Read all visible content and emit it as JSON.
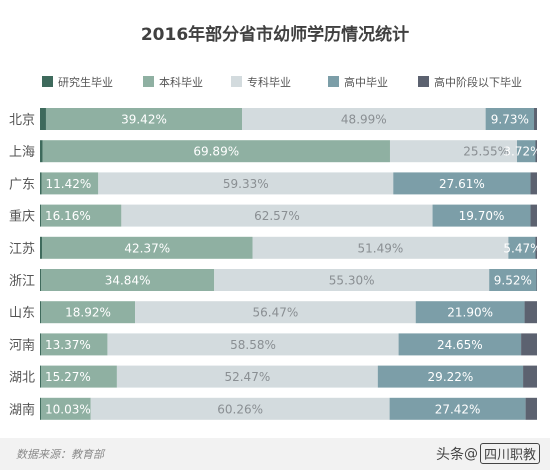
{
  "chart_data": {
    "type": "bar",
    "orientation": "horizontal",
    "stacked": true,
    "normalized": true,
    "title": "2016年部分省市幼师学历情况统计",
    "legend_position": "top",
    "grid": false,
    "xlim": [
      0,
      100
    ],
    "categories": [
      "北京",
      "上海",
      "广东",
      "重庆",
      "江苏",
      "浙江",
      "山东",
      "河南",
      "湖北",
      "湖南"
    ],
    "series": [
      {
        "name": "研究生毕业",
        "color": "#3e6a5c",
        "values": [
          1.2,
          0.5,
          0.3,
          0.2,
          0.4,
          0.2,
          0.2,
          0.2,
          0.2,
          0.2
        ],
        "labels": [
          "",
          "",
          "",
          "",
          "",
          "",
          "",
          "",
          "",
          ""
        ]
      },
      {
        "name": "本科毕业",
        "color": "#8fb0a2",
        "values": [
          39.42,
          69.89,
          11.42,
          16.16,
          42.37,
          34.84,
          18.92,
          13.37,
          15.27,
          10.03
        ],
        "labels": [
          "39.42%",
          "69.89%",
          "11.42%",
          "16.16%",
          "42.37%",
          "34.84%",
          "18.92%",
          "13.37%",
          "15.27%",
          "10.03%"
        ]
      },
      {
        "name": "专科毕业",
        "color": "#d3dbde",
        "values": [
          48.99,
          25.55,
          59.33,
          62.57,
          51.49,
          55.3,
          56.47,
          58.58,
          52.47,
          60.26
        ],
        "labels": [
          "48.99%",
          "25.55%",
          "59.33%",
          "62.57%",
          "51.49%",
          "55.30%",
          "56.47%",
          "58.58%",
          "52.47%",
          "60.26%"
        ]
      },
      {
        "name": "高中毕业",
        "color": "#7c9ea8",
        "values": [
          9.73,
          3.72,
          27.61,
          19.7,
          5.47,
          9.52,
          21.9,
          24.65,
          29.22,
          27.42
        ],
        "labels": [
          "9.73%",
          "3.72%",
          "27.61%",
          "19.70%",
          "5.47%",
          "9.52%",
          "21.90%",
          "24.65%",
          "29.22%",
          "27.42%"
        ]
      },
      {
        "name": "高中阶段以下毕业",
        "color": "#5c6270",
        "values": [
          0.6,
          0.3,
          1.3,
          1.3,
          0.3,
          0.1,
          2.5,
          3.2,
          2.8,
          2.3
        ],
        "labels": [
          "",
          "",
          "",
          "",
          "",
          "",
          "",
          "",
          "",
          ""
        ]
      }
    ]
  },
  "footer": {
    "source": "数据来源：教育部",
    "watermark_prefix": "头条",
    "watermark_at": "@",
    "watermark_name": "四川职教"
  },
  "colors": {
    "label_dark": "#ffffff",
    "label_light": "#8a8f93",
    "category_text": "#555555",
    "title": "#404040"
  }
}
